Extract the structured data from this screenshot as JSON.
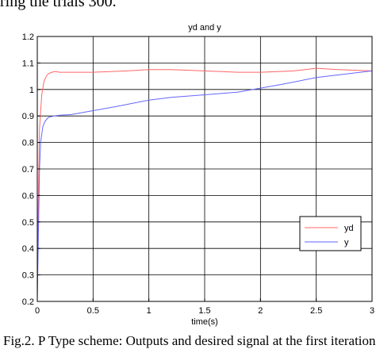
{
  "page_text": {
    "top_fragment": "ring the trials 300.",
    "caption": "Fig.2. P Type scheme: Outputs and desired signal at the first iteration."
  },
  "chart_data": {
    "type": "line",
    "title": "yd and y",
    "xlabel": "time(s)",
    "ylabel": "",
    "xlim": [
      0,
      3
    ],
    "ylim": [
      0.2,
      1.2
    ],
    "xticks": [
      "0",
      "0.5",
      "1",
      "1.5",
      "2",
      "2.5",
      "3"
    ],
    "yticks": [
      "0.2",
      "0.3",
      "0.4",
      "0.5",
      "0.6",
      "0.7",
      "0.8",
      "0.9",
      "1",
      "1.1",
      "1.2"
    ],
    "grid": true,
    "legend_position": "bottom-right",
    "series": [
      {
        "name": "yd",
        "color": "#ff6666",
        "x": [
          0,
          0.01,
          0.02,
          0.04,
          0.06,
          0.08,
          0.1,
          0.13,
          0.16,
          0.2,
          0.3,
          0.5,
          0.8,
          1.0,
          1.2,
          1.5,
          1.8,
          2.0,
          2.3,
          2.5,
          2.7,
          3.0
        ],
        "y": [
          0.22,
          0.6,
          0.85,
          0.98,
          1.03,
          1.05,
          1.06,
          1.065,
          1.068,
          1.065,
          1.065,
          1.065,
          1.07,
          1.075,
          1.075,
          1.07,
          1.065,
          1.065,
          1.07,
          1.08,
          1.075,
          1.07
        ]
      },
      {
        "name": "y",
        "color": "#6666ff",
        "x": [
          0,
          0.01,
          0.02,
          0.03,
          0.05,
          0.07,
          0.1,
          0.15,
          0.2,
          0.3,
          0.5,
          0.7,
          1.0,
          1.2,
          1.5,
          1.8,
          2.0,
          2.2,
          2.5,
          2.7,
          3.0
        ],
        "y": [
          0.2,
          0.45,
          0.7,
          0.8,
          0.86,
          0.88,
          0.895,
          0.9,
          0.903,
          0.905,
          0.92,
          0.935,
          0.96,
          0.97,
          0.98,
          0.99,
          1.005,
          1.02,
          1.045,
          1.055,
          1.07
        ]
      }
    ]
  }
}
